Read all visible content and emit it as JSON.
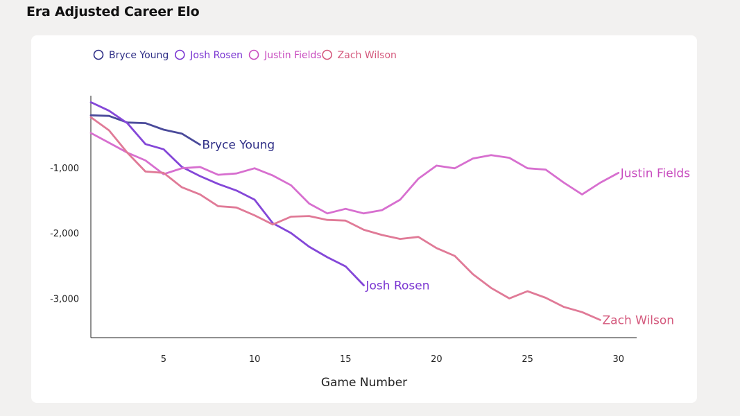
{
  "page": {
    "title": "Era Adjusted Career Elo"
  },
  "chart_data": {
    "type": "line",
    "title": "Era Adjusted Career Elo",
    "xlabel": "Game Number",
    "ylabel": "",
    "xlim": [
      1,
      31
    ],
    "ylim": [
      -3600,
      100
    ],
    "xticks": [
      5,
      10,
      15,
      20,
      25,
      30
    ],
    "yticks": [
      -1000,
      -2000,
      -3000
    ],
    "ytick_labels": [
      "-1,000",
      "-2,000",
      "-3,000"
    ],
    "grid": false,
    "legend": "top-left",
    "series": [
      {
        "name": "Bryce Young",
        "color": "#4a4a9a",
        "label_color": "#2e2e86",
        "x": [
          1,
          2,
          3,
          4,
          5,
          6,
          7
        ],
        "y": [
          -200,
          -210,
          -310,
          -320,
          -420,
          -480,
          -650
        ]
      },
      {
        "name": "Josh Rosen",
        "color": "#8447d8",
        "label_color": "#7a35d1",
        "x": [
          1,
          2,
          3,
          4,
          5,
          6,
          7,
          8,
          9,
          10,
          11,
          12,
          13,
          14,
          15,
          16
        ],
        "y": [
          0,
          -130,
          -320,
          -640,
          -720,
          -990,
          -1130,
          -1250,
          -1350,
          -1490,
          -1850,
          -2000,
          -2210,
          -2370,
          -2510,
          -2800
        ]
      },
      {
        "name": "Justin Fields",
        "color": "#d76fcf",
        "label_color": "#c84cbf",
        "x": [
          1,
          2,
          3,
          4,
          5,
          6,
          7,
          8,
          9,
          10,
          11,
          12,
          13,
          14,
          15,
          16,
          17,
          18,
          19,
          20,
          21,
          22,
          23,
          24,
          25,
          26,
          27,
          28,
          29,
          30
        ],
        "y": [
          -470,
          -620,
          -770,
          -890,
          -1100,
          -1010,
          -990,
          -1110,
          -1090,
          -1010,
          -1120,
          -1270,
          -1550,
          -1700,
          -1630,
          -1700,
          -1650,
          -1490,
          -1170,
          -970,
          -1010,
          -860,
          -810,
          -850,
          -1010,
          -1030,
          -1230,
          -1410,
          -1230,
          -1080
        ]
      },
      {
        "name": "Zach Wilson",
        "color": "#e07a97",
        "label_color": "#d4587c",
        "x": [
          1,
          2,
          3,
          4,
          5,
          6,
          7,
          8,
          9,
          10,
          11,
          12,
          13,
          14,
          15,
          16,
          17,
          18,
          19,
          20,
          21,
          22,
          23,
          24,
          25,
          26,
          27,
          28,
          29
        ],
        "y": [
          -230,
          -430,
          -770,
          -1060,
          -1080,
          -1300,
          -1410,
          -1590,
          -1610,
          -1730,
          -1870,
          -1750,
          -1740,
          -1800,
          -1810,
          -1950,
          -2030,
          -2090,
          -2060,
          -2230,
          -2350,
          -2630,
          -2840,
          -3000,
          -2890,
          -2990,
          -3130,
          -3210,
          -3330
        ]
      }
    ]
  }
}
